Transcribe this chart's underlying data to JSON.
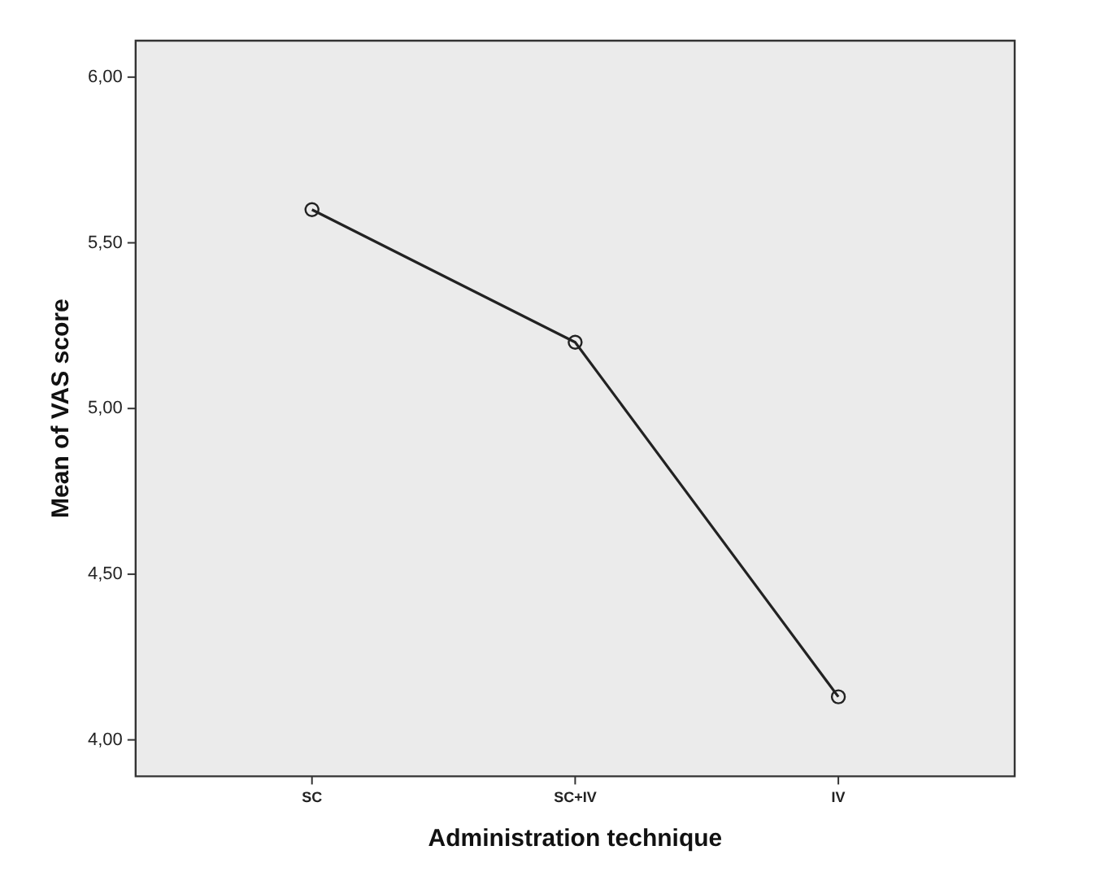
{
  "chart_data": {
    "type": "line",
    "xlabel": "Administration technique",
    "ylabel": "Mean of VAS score",
    "categories": [
      "SC",
      "SC+IV",
      "IV"
    ],
    "values": [
      5.6,
      5.2,
      4.13
    ],
    "color": "#222222",
    "ylim": [
      3.89,
      6.11
    ],
    "yticks": [
      {
        "value": 4,
        "label": "4,00"
      },
      {
        "value": 4.5,
        "label": "4,50"
      },
      {
        "value": 5,
        "label": "5,00"
      },
      {
        "value": 5.5,
        "label": "5,50"
      },
      {
        "value": 6,
        "label": "6,00"
      }
    ],
    "grid": false,
    "legend": false,
    "marker": "circle",
    "line_style": "solid"
  }
}
